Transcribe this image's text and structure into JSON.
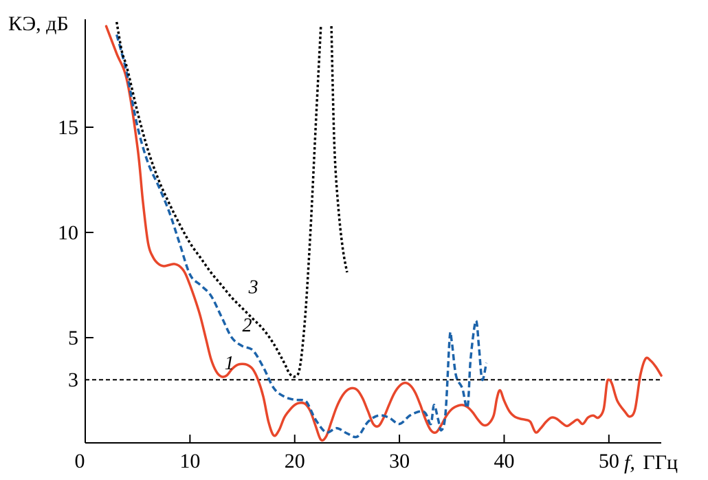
{
  "chart_data": {
    "type": "line",
    "xlabel_var": "f,",
    "xlabel_unit": "ГГц",
    "ylabel": "КЭ, дБ",
    "xlim": [
      0,
      55
    ],
    "ylim": [
      0,
      20
    ],
    "x_ticks": [
      {
        "value": 0,
        "label": "0"
      },
      {
        "value": 10,
        "label": "10"
      },
      {
        "value": 20,
        "label": "20"
      },
      {
        "value": 30,
        "label": "30"
      },
      {
        "value": 40,
        "label": "40"
      },
      {
        "value": 50,
        "label": "50"
      }
    ],
    "y_ticks": [
      {
        "value": 3,
        "label": "3"
      },
      {
        "value": 5,
        "label": "5"
      },
      {
        "value": 10,
        "label": "10"
      },
      {
        "value": 15,
        "label": "15"
      }
    ],
    "reference_line": {
      "y": 3,
      "style": "dashed",
      "color": "#000000"
    },
    "grid": false,
    "series": [
      {
        "name": "1",
        "color": "#e8472b",
        "style": "solid",
        "points": [
          [
            2.0,
            19.8
          ],
          [
            3.0,
            18.5
          ],
          [
            4.0,
            17.2
          ],
          [
            5.0,
            14.0
          ],
          [
            5.5,
            11.5
          ],
          [
            6.0,
            9.5
          ],
          [
            6.5,
            8.8
          ],
          [
            7.0,
            8.5
          ],
          [
            7.5,
            8.4
          ],
          [
            8.0,
            8.45
          ],
          [
            8.5,
            8.5
          ],
          [
            9.0,
            8.4
          ],
          [
            9.5,
            8.1
          ],
          [
            10.0,
            7.5
          ],
          [
            10.5,
            6.8
          ],
          [
            11.0,
            6.0
          ],
          [
            11.5,
            5.0
          ],
          [
            12.0,
            4.0
          ],
          [
            12.5,
            3.4
          ],
          [
            13.0,
            3.15
          ],
          [
            13.5,
            3.2
          ],
          [
            14.0,
            3.5
          ],
          [
            14.5,
            3.7
          ],
          [
            15.0,
            3.75
          ],
          [
            15.5,
            3.7
          ],
          [
            16.0,
            3.5
          ],
          [
            16.5,
            3.0
          ],
          [
            17.0,
            2.2
          ],
          [
            17.5,
            1.0
          ],
          [
            18.0,
            0.35
          ],
          [
            18.5,
            0.6
          ],
          [
            19.0,
            1.2
          ],
          [
            19.5,
            1.55
          ],
          [
            20.0,
            1.8
          ],
          [
            20.5,
            1.9
          ],
          [
            21.0,
            1.85
          ],
          [
            21.5,
            1.5
          ],
          [
            22.0,
            0.8
          ],
          [
            22.5,
            0.15
          ],
          [
            23.0,
            0.3
          ],
          [
            23.5,
            1.0
          ],
          [
            24.0,
            1.7
          ],
          [
            24.5,
            2.2
          ],
          [
            25.0,
            2.5
          ],
          [
            25.5,
            2.6
          ],
          [
            26.0,
            2.5
          ],
          [
            26.5,
            2.1
          ],
          [
            27.0,
            1.5
          ],
          [
            27.5,
            0.9
          ],
          [
            28.0,
            0.8
          ],
          [
            28.5,
            1.2
          ],
          [
            29.0,
            1.8
          ],
          [
            29.5,
            2.35
          ],
          [
            30.0,
            2.7
          ],
          [
            30.5,
            2.85
          ],
          [
            31.0,
            2.75
          ],
          [
            31.5,
            2.4
          ],
          [
            32.0,
            1.8
          ],
          [
            32.5,
            1.1
          ],
          [
            33.0,
            0.6
          ],
          [
            33.5,
            0.5
          ],
          [
            34.0,
            0.85
          ],
          [
            34.5,
            1.3
          ],
          [
            35.0,
            1.6
          ],
          [
            35.5,
            1.75
          ],
          [
            36.0,
            1.8
          ],
          [
            36.5,
            1.7
          ],
          [
            37.0,
            1.45
          ],
          [
            37.5,
            1.1
          ],
          [
            38.0,
            0.85
          ],
          [
            38.5,
            0.9
          ],
          [
            39.0,
            1.3
          ],
          [
            39.3,
            2.1
          ],
          [
            39.6,
            2.5
          ],
          [
            40.0,
            2.0
          ],
          [
            40.5,
            1.5
          ],
          [
            41.0,
            1.25
          ],
          [
            41.5,
            1.15
          ],
          [
            42.0,
            1.1
          ],
          [
            42.5,
            1.0
          ],
          [
            43.0,
            0.5
          ],
          [
            43.5,
            0.7
          ],
          [
            44.0,
            1.0
          ],
          [
            44.5,
            1.2
          ],
          [
            45.0,
            1.15
          ],
          [
            45.5,
            0.95
          ],
          [
            46.0,
            0.8
          ],
          [
            46.5,
            0.95
          ],
          [
            47.0,
            1.1
          ],
          [
            47.5,
            0.9
          ],
          [
            48.0,
            1.2
          ],
          [
            48.5,
            1.3
          ],
          [
            49.0,
            1.2
          ],
          [
            49.5,
            1.6
          ],
          [
            49.8,
            2.8
          ],
          [
            50.0,
            3.0
          ],
          [
            50.3,
            2.8
          ],
          [
            50.8,
            2.0
          ],
          [
            51.5,
            1.5
          ],
          [
            52.0,
            1.25
          ],
          [
            52.5,
            1.6
          ],
          [
            53.0,
            3.2
          ],
          [
            53.5,
            4.0
          ],
          [
            54.0,
            3.9
          ],
          [
            54.5,
            3.6
          ],
          [
            55.0,
            3.2
          ]
        ]
      },
      {
        "name": "2",
        "color": "#1c63aa",
        "style": "dashed",
        "points": [
          [
            3.0,
            19.4
          ],
          [
            3.5,
            18.5
          ],
          [
            4.0,
            17.5
          ],
          [
            5.0,
            15.0
          ],
          [
            6.0,
            13.3
          ],
          [
            7.0,
            12.2
          ],
          [
            8.0,
            11.0
          ],
          [
            9.0,
            9.5
          ],
          [
            10.0,
            8.0
          ],
          [
            11.0,
            7.5
          ],
          [
            12.0,
            7.0
          ],
          [
            13.0,
            6.0
          ],
          [
            14.0,
            5.0
          ],
          [
            15.0,
            4.6
          ],
          [
            16.0,
            4.4
          ],
          [
            17.0,
            3.6
          ],
          [
            18.0,
            2.6
          ],
          [
            19.0,
            2.2
          ],
          [
            20.0,
            2.05
          ],
          [
            21.0,
            2.0
          ],
          [
            21.5,
            1.6
          ],
          [
            22.0,
            1.1
          ],
          [
            23.0,
            0.5
          ],
          [
            24.0,
            0.7
          ],
          [
            25.0,
            0.45
          ],
          [
            26.0,
            0.3
          ],
          [
            27.0,
            1.0
          ],
          [
            28.0,
            1.3
          ],
          [
            29.0,
            1.2
          ],
          [
            30.0,
            0.9
          ],
          [
            31.0,
            1.3
          ],
          [
            32.0,
            1.5
          ],
          [
            32.5,
            1.4
          ],
          [
            33.0,
            0.9
          ],
          [
            33.3,
            1.8
          ],
          [
            33.7,
            1.1
          ],
          [
            34.0,
            0.6
          ],
          [
            34.4,
            1.4
          ],
          [
            34.8,
            5.0
          ],
          [
            35.0,
            4.8
          ],
          [
            35.4,
            3.2
          ],
          [
            36.0,
            2.6
          ],
          [
            36.5,
            1.7
          ],
          [
            36.8,
            4.0
          ],
          [
            37.3,
            5.8
          ],
          [
            37.6,
            4.5
          ],
          [
            37.9,
            3.0
          ],
          [
            38.3,
            3.8
          ]
        ]
      },
      {
        "name": "3",
        "color": "#000000",
        "style": "dotted",
        "points": [
          [
            3.0,
            20.0
          ],
          [
            3.5,
            18.6
          ],
          [
            4.0,
            17.8
          ],
          [
            5.0,
            15.7
          ],
          [
            6.0,
            13.9
          ],
          [
            7.0,
            12.5
          ],
          [
            8.0,
            11.4
          ],
          [
            9.0,
            10.4
          ],
          [
            10.0,
            9.5
          ],
          [
            11.0,
            8.8
          ],
          [
            12.0,
            8.1
          ],
          [
            13.0,
            7.5
          ],
          [
            14.0,
            6.9
          ],
          [
            15.0,
            6.4
          ],
          [
            16.0,
            5.9
          ],
          [
            17.0,
            5.4
          ],
          [
            18.0,
            4.7
          ],
          [
            19.0,
            3.8
          ],
          [
            19.5,
            3.3
          ],
          [
            20.0,
            3.15
          ],
          [
            20.5,
            3.6
          ],
          [
            21.0,
            6.0
          ],
          [
            21.5,
            10.0
          ],
          [
            22.0,
            15.0
          ],
          [
            22.5,
            19.8
          ]
        ]
      },
      {
        "name": "",
        "color": "#000000",
        "style": "dotted",
        "points": [
          [
            23.5,
            19.8
          ],
          [
            23.8,
            14.0
          ],
          [
            24.2,
            11.0
          ],
          [
            24.6,
            9.2
          ],
          [
            25.0,
            8.1
          ]
        ]
      }
    ],
    "curve_labels": [
      {
        "text": "1",
        "x": 13.3,
        "y": 3.5
      },
      {
        "text": "2",
        "x": 15.0,
        "y": 5.3
      },
      {
        "text": "3",
        "x": 15.6,
        "y": 7.1
      }
    ]
  }
}
